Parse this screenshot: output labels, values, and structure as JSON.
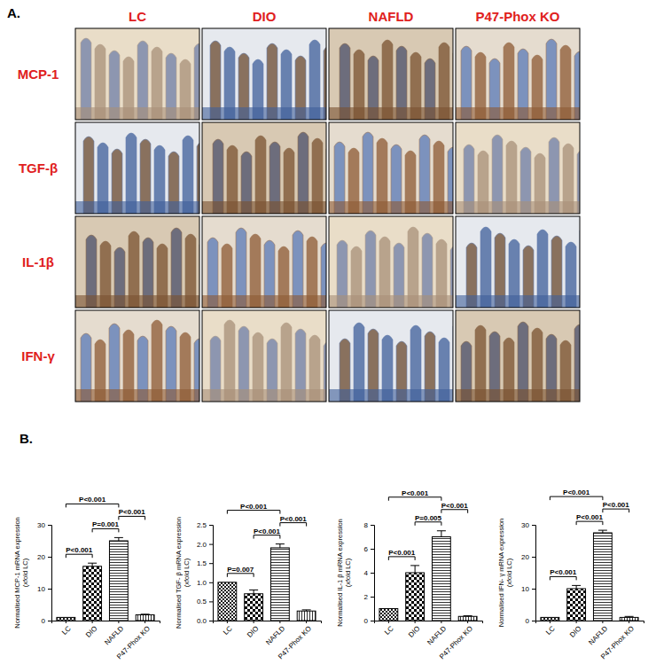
{
  "figure": {
    "panel_labels": [
      "A.",
      "B."
    ],
    "image_grid": {
      "columns": [
        "LC",
        "DIO",
        "NAFLD",
        "P47-Phox KO"
      ],
      "rows": [
        "MCP-1",
        "TGF-β",
        "IL-1β",
        "IFN-γ"
      ]
    }
  },
  "chart_data": [
    {
      "type": "bar",
      "y_label": "Normalised MCP-1 mRNA expression (xfold LC)",
      "categories": [
        "LC",
        "DIO",
        "NAFLD",
        "P47-Phox KO"
      ],
      "values": [
        1,
        17,
        25,
        1.8
      ],
      "errors": [
        0,
        1,
        1,
        0.2
      ],
      "color": "#000000",
      "ylim": [
        0,
        30
      ],
      "yticks": [
        0,
        10,
        20,
        30
      ],
      "annotations": [
        {
          "from": "LC",
          "to": "NAFLD",
          "label": "P<0.001"
        },
        {
          "from": "LC",
          "to": "DIO",
          "label": "P<0.001"
        },
        {
          "from": "DIO",
          "to": "NAFLD",
          "label": "P=0.001"
        },
        {
          "from": "NAFLD",
          "to": "P47-Phox KO",
          "label": "P<0.001"
        }
      ]
    },
    {
      "type": "bar",
      "y_label": "Normalised TGF- β mRNA expression (xfold LC)",
      "categories": [
        "LC",
        "DIO",
        "NAFLD",
        "P47-Phox KO"
      ],
      "values": [
        1.0,
        0.7,
        1.9,
        0.25
      ],
      "errors": [
        0,
        0.1,
        0.1,
        0.03
      ],
      "color": "#000000",
      "ylim": [
        0,
        2.5
      ],
      "yticks": [
        {
          "value": 0,
          "label": "0.0"
        },
        0.5,
        {
          "value": 1,
          "label": "1.0"
        },
        1.5,
        {
          "value": 2,
          "label": "2.0"
        },
        2.5
      ],
      "annotations": [
        {
          "from": "LC",
          "to": "NAFLD",
          "label": "P<0.001"
        },
        {
          "from": "LC",
          "to": "DIO",
          "label": "P=0.007"
        },
        {
          "from": "DIO",
          "to": "NAFLD",
          "label": "P<0.001"
        },
        {
          "from": "NAFLD",
          "to": "P47-Phox KO",
          "label": "P<0.001"
        }
      ]
    },
    {
      "type": "bar",
      "y_label": "Normalised IL-1 β mRNA expression (xfold LC)",
      "categories": [
        "LC",
        "DIO",
        "NAFLD",
        "P47-Phox KO"
      ],
      "values": [
        1,
        4,
        7,
        0.35
      ],
      "errors": [
        0,
        0.6,
        0.5,
        0.05
      ],
      "color": "#000000",
      "ylim": [
        0,
        8
      ],
      "yticks": [
        0,
        2,
        4,
        6,
        8
      ],
      "annotations": [
        {
          "from": "LC",
          "to": "NAFLD",
          "label": "P<0.001"
        },
        {
          "from": "LC",
          "to": "DIO",
          "label": "P<0.001"
        },
        {
          "from": "DIO",
          "to": "NAFLD",
          "label": "P=0.005"
        },
        {
          "from": "NAFLD",
          "to": "P47-Phox KO",
          "label": "P<0.001"
        }
      ]
    },
    {
      "type": "bar",
      "y_label": "Normalised IFN- γ mRNA expression (xfold LC)",
      "categories": [
        "LC",
        "DIO",
        "NAFLD",
        "P47-Phox KO"
      ],
      "values": [
        1,
        10,
        27.5,
        1
      ],
      "errors": [
        0,
        1,
        0.8,
        0.3
      ],
      "color": "#000000",
      "ylim": [
        0,
        30
      ],
      "yticks": [
        0,
        10,
        20,
        30
      ],
      "annotations": [
        {
          "from": "LC",
          "to": "NAFLD",
          "label": "P<0.001"
        },
        {
          "from": "LC",
          "to": "DIO",
          "label": "P<0.001"
        },
        {
          "from": "DIO",
          "to": "NAFLD",
          "label": "P<0.001"
        },
        {
          "from": "NAFLD",
          "to": "P47-Phox KO",
          "label": "P<0.001"
        }
      ]
    }
  ]
}
